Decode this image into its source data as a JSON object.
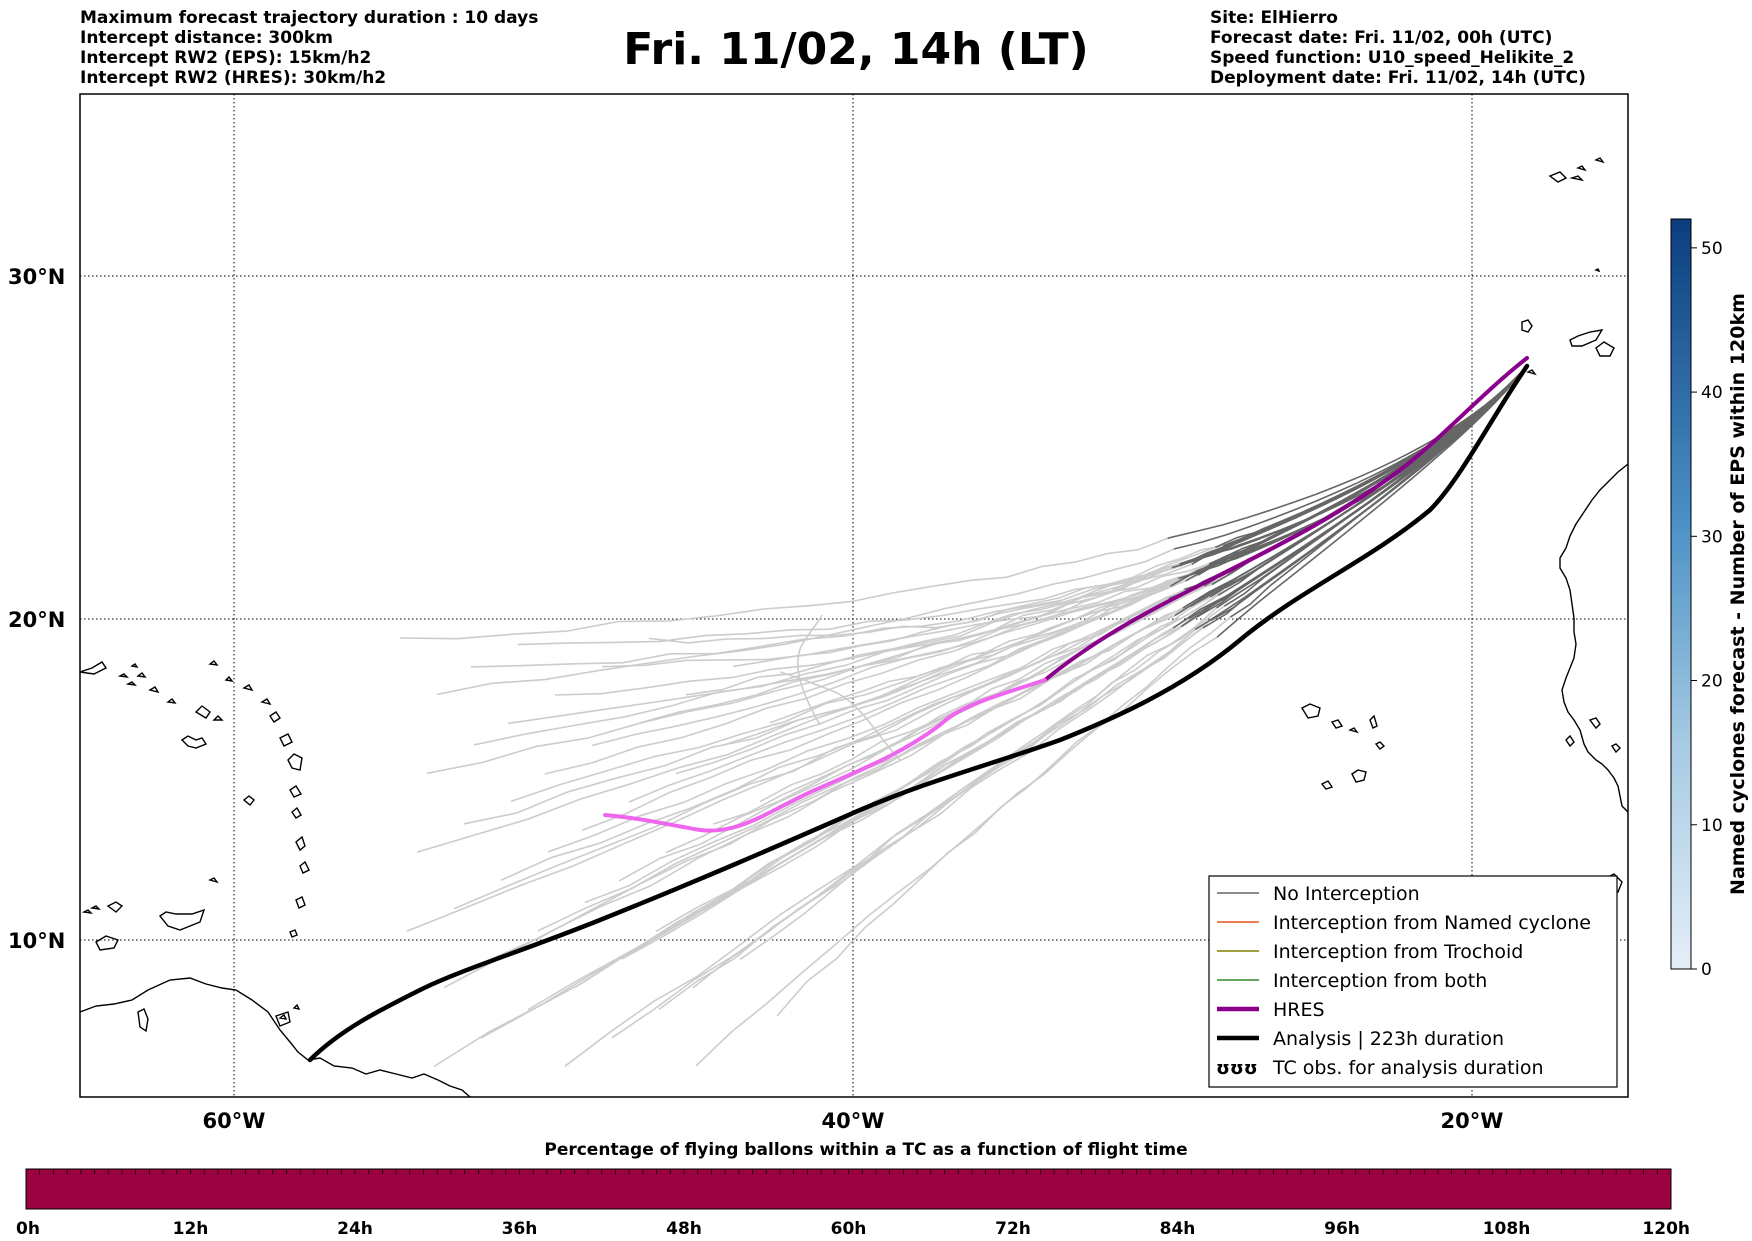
{
  "header": {
    "left_lines": [
      "Maximum forecast trajectory duration : 10 days",
      "Intercept distance: 300km",
      "Intercept RW2 (EPS):  15km/h2",
      "Intercept RW2 (HRES): 30km/h2"
    ],
    "title": "Fri. 11/02, 14h (LT)",
    "right_lines": [
      "Site: ElHierro",
      "Forecast date: Fri. 11/02, 00h (UTC)",
      "Speed function: U10_speed_Helikite_2",
      "Deployment date: Fri. 11/02, 14h (UTC)"
    ]
  },
  "map": {
    "lat_labels": [
      "30°N",
      "20°N",
      "10°N"
    ],
    "lon_labels": [
      "60°W",
      "40°W",
      "20°W"
    ],
    "gridlines": "dotted",
    "trajectory_colors": {
      "no_interception": "#666666",
      "beyond_window": "#cccccc",
      "named_cyclone": "#e8541c",
      "trochoid": "#808000",
      "both": "#2e8b2e",
      "hres_early": "#8b008b",
      "hres_late": "#ee66ee",
      "analysis": "#000000"
    },
    "site_label": "ElHierro"
  },
  "legend": {
    "placement": "bottom-right",
    "items": [
      {
        "label": "No Interception",
        "color": "#666666",
        "style": "thin"
      },
      {
        "label": "Interception from Named cyclone",
        "color": "#e8541c",
        "style": "thin"
      },
      {
        "label": "Interception from Trochoid",
        "color": "#808000",
        "style": "thin"
      },
      {
        "label": "Interception from both",
        "color": "#2e8b2e",
        "style": "thin"
      },
      {
        "label": "HRES",
        "color": "#8b008b",
        "style": "thick"
      },
      {
        "label": "Analysis | 223h duration",
        "color": "#000000",
        "style": "thick"
      },
      {
        "label": "TC obs. for analysis duration",
        "color": "#000000",
        "style": "symbol"
      }
    ],
    "symbol_glyph": "ʊʊʊ"
  },
  "colorbar_right": {
    "label": "Named cyclones forecast - Number of EPS within 120km",
    "ticks": [
      "0",
      "10",
      "20",
      "30",
      "40",
      "50"
    ],
    "range": [
      0,
      52
    ],
    "color_low": "#e4eef8",
    "color_high": "#0b3d7e"
  },
  "colorbar_bottom": {
    "title": "Percentage of flying ballons within a TC as a function of flight time",
    "ticks": [
      "0h",
      "12h",
      "24h",
      "36h",
      "48h",
      "60h",
      "72h",
      "84h",
      "96h",
      "108h",
      "120h"
    ],
    "fill_color": "#9b0040"
  }
}
